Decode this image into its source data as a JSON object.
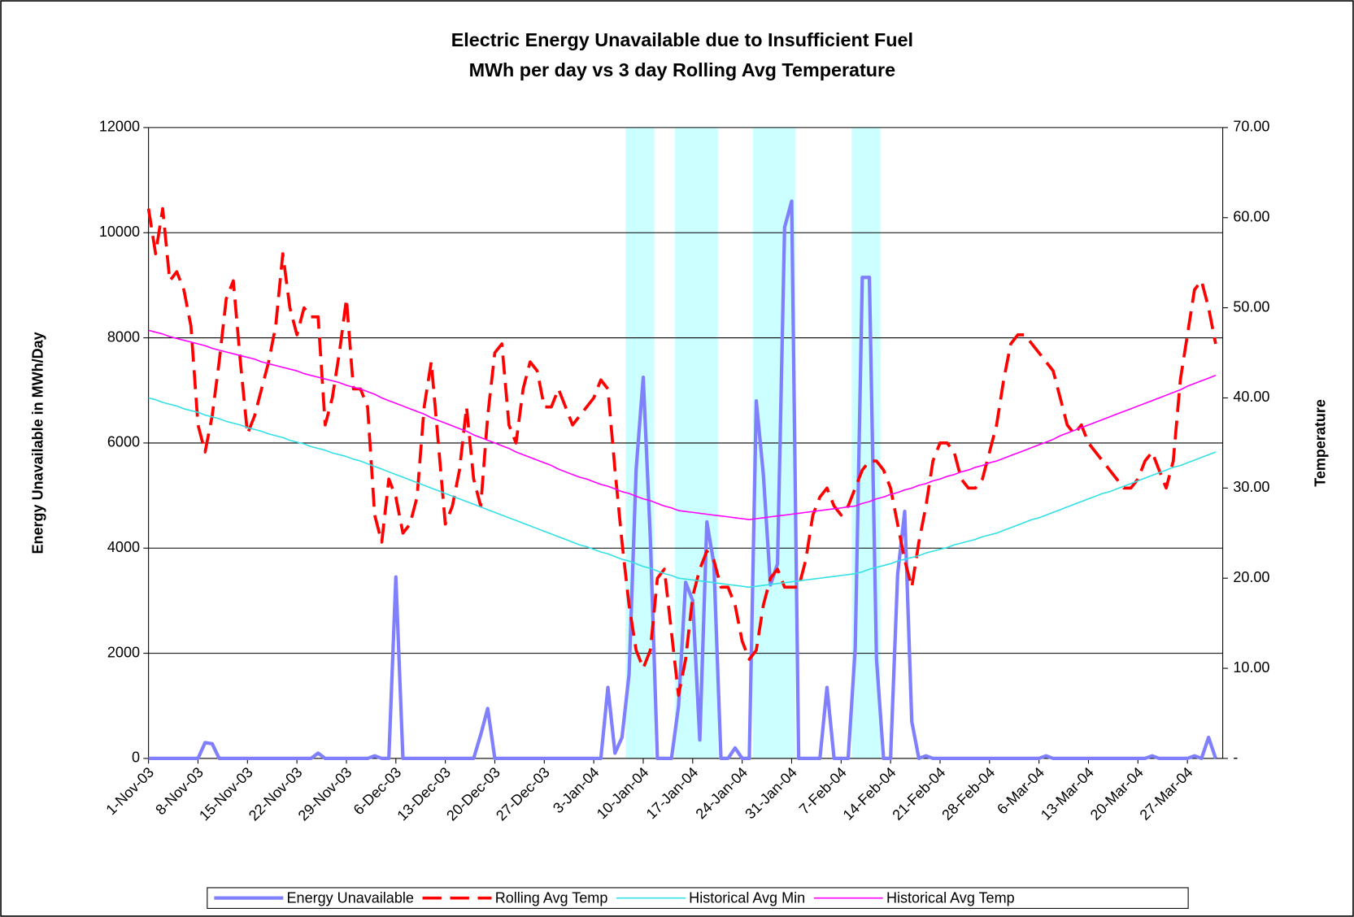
{
  "chart_data": {
    "type": "line",
    "title": "Electric Energy Unavailable due to Insufficient Fuel",
    "subtitle": "MWh per day vs 3 day Rolling Avg Temperature",
    "ylabel": "Energy Unavailable in MWh/Day",
    "y2label": "Temperature",
    "categories": [
      "1-Nov-03",
      null,
      null,
      null,
      null,
      null,
      null,
      "8-Nov-03",
      null,
      null,
      null,
      null,
      null,
      null,
      "15-Nov-03",
      null,
      null,
      null,
      null,
      null,
      null,
      "22-Nov-03",
      null,
      null,
      null,
      null,
      null,
      null,
      "29-Nov-03",
      null,
      null,
      null,
      null,
      null,
      null,
      "6-Dec-03",
      null,
      null,
      null,
      null,
      null,
      null,
      "13-Dec-03",
      null,
      null,
      null,
      null,
      null,
      null,
      "20-Dec-03",
      null,
      null,
      null,
      null,
      null,
      null,
      "27-Dec-03",
      null,
      null,
      null,
      null,
      null,
      null,
      "3-Jan-04",
      null,
      null,
      null,
      null,
      null,
      null,
      "10-Jan-04",
      null,
      null,
      null,
      null,
      null,
      null,
      "17-Jan-04",
      null,
      null,
      null,
      null,
      null,
      null,
      "24-Jan-04",
      null,
      null,
      null,
      null,
      null,
      null,
      "31-Jan-04",
      null,
      null,
      null,
      null,
      null,
      null,
      "7-Feb-04",
      null,
      null,
      null,
      null,
      null,
      null,
      "14-Feb-04",
      null,
      null,
      null,
      null,
      null,
      null,
      "21-Feb-04",
      null,
      null,
      null,
      null,
      null,
      null,
      "28-Feb-04",
      null,
      null,
      null,
      null,
      null,
      null,
      "6-Mar-04",
      null,
      null,
      null,
      null,
      null,
      null,
      "13-Mar-04",
      null,
      null,
      null,
      null,
      null,
      null,
      "20-Mar-04",
      null,
      null,
      null,
      null,
      null,
      null,
      "27-Mar-04",
      null,
      null,
      null,
      null
    ],
    "ylim": [
      0,
      12000
    ],
    "yticks": [
      0,
      2000,
      4000,
      6000,
      8000,
      10000,
      12000
    ],
    "y2lim": [
      0,
      70
    ],
    "y2ticks": [
      {
        "value": 0,
        "label": "-"
      },
      {
        "value": 10,
        "label": "10.00"
      },
      {
        "value": 20,
        "label": "20.00"
      },
      {
        "value": 30,
        "label": "30.00"
      },
      {
        "value": 40,
        "label": "40.00"
      },
      {
        "value": 50,
        "label": "50.00"
      },
      {
        "value": 60,
        "label": "60.00"
      },
      {
        "value": 70,
        "label": "70.00"
      }
    ],
    "grid": true,
    "legend": "bottom",
    "bands": {
      "color": "#ccffff",
      "values": [
        null,
        null,
        null,
        null,
        null,
        null,
        null,
        null,
        null,
        null,
        null,
        null,
        null,
        null,
        null,
        null,
        null,
        null,
        null,
        null,
        null,
        null,
        null,
        null,
        null,
        null,
        null,
        null,
        null,
        null,
        null,
        null,
        null,
        null,
        null,
        null,
        null,
        null,
        null,
        null,
        null,
        null,
        null,
        null,
        null,
        null,
        null,
        null,
        null,
        null,
        null,
        null,
        null,
        null,
        null,
        null,
        null,
        null,
        null,
        null,
        null,
        null,
        null,
        null,
        null,
        null,
        null,
        null,
        12000,
        12000,
        12000,
        12000,
        null,
        null,
        null,
        12000,
        12000,
        12000,
        12000,
        12000,
        12000,
        null,
        null,
        null,
        null,
        null,
        12000,
        12000,
        12000,
        12000,
        12000,
        12000,
        null,
        null,
        null,
        null,
        null,
        null,
        null,
        null,
        12000,
        12000,
        12000,
        12000,
        null,
        null,
        null,
        null,
        null,
        null,
        null,
        null,
        null,
        null,
        null,
        null,
        null,
        null,
        null,
        null,
        null,
        null,
        null,
        null,
        null,
        null,
        null,
        null,
        null,
        null,
        null,
        null,
        null,
        null,
        null,
        null,
        null,
        null,
        null,
        null,
        null,
        null,
        null,
        null,
        null,
        null,
        null,
        null,
        null,
        null
      ]
    },
    "series": [
      {
        "name": "Energy Unavailable",
        "color": "#8080ff",
        "axis": "y",
        "dash": false,
        "width": 4,
        "values": [
          0,
          0,
          0,
          0,
          0,
          0,
          0,
          0,
          300,
          280,
          0,
          0,
          0,
          0,
          0,
          0,
          0,
          0,
          0,
          0,
          0,
          0,
          0,
          0,
          100,
          0,
          0,
          0,
          0,
          0,
          0,
          0,
          50,
          0,
          0,
          3450,
          0,
          0,
          0,
          0,
          0,
          0,
          0,
          0,
          0,
          0,
          0,
          450,
          950,
          0,
          0,
          0,
          0,
          0,
          0,
          0,
          0,
          0,
          0,
          0,
          0,
          0,
          0,
          0,
          0,
          1350,
          100,
          400,
          1600,
          5500,
          7250,
          4200,
          0,
          0,
          0,
          1000,
          3350,
          3000,
          350,
          4500,
          3700,
          0,
          0,
          200,
          0,
          0,
          6800,
          5400,
          3300,
          3700,
          10100,
          10600,
          0,
          0,
          0,
          0,
          1350,
          0,
          0,
          0,
          2100,
          9150,
          9150,
          1900,
          0,
          0,
          3500,
          4700,
          700,
          0,
          50,
          0,
          0,
          0,
          0,
          0,
          0,
          0,
          0,
          0,
          0,
          0,
          0,
          0,
          0,
          0,
          0,
          50,
          0,
          0,
          0,
          0,
          0,
          0,
          0,
          0,
          0,
          0,
          0,
          0,
          0,
          0,
          50,
          0,
          0,
          0,
          0,
          0,
          50,
          0,
          400,
          0
        ]
      },
      {
        "name": "Rolling Avg Temp",
        "color": "#ff0000",
        "axis": "y2",
        "dash": true,
        "width": 3.5,
        "values": [
          61,
          56,
          61,
          53,
          54,
          52,
          48,
          37,
          34,
          38,
          44,
          51,
          53,
          44,
          36,
          38,
          41,
          44,
          48,
          56,
          50,
          47,
          50,
          49,
          49,
          37,
          40,
          45,
          51,
          41,
          41,
          39,
          27,
          24,
          31,
          29,
          25,
          26,
          29,
          39,
          44,
          35,
          26,
          28,
          32,
          39,
          31,
          28,
          38,
          45,
          46,
          37,
          35,
          41,
          44,
          43,
          39,
          39,
          41,
          39,
          37,
          38,
          39,
          40,
          42,
          41,
          32,
          24,
          17,
          12,
          10,
          12,
          20,
          21,
          14,
          7,
          11,
          18,
          21,
          23,
          22,
          19,
          19,
          17,
          13,
          11,
          12,
          17,
          20,
          21,
          19,
          19,
          19,
          22,
          27,
          29,
          30,
          28,
          27,
          28,
          30,
          32,
          33,
          33,
          32,
          30,
          26,
          22,
          19,
          24,
          28,
          33,
          35,
          35,
          34,
          31,
          30,
          30,
          31,
          34,
          37,
          42,
          46,
          47,
          47,
          46,
          45,
          44,
          43,
          40,
          37,
          36,
          37,
          35,
          34,
          33,
          32,
          31,
          30,
          30,
          31,
          33,
          34,
          32,
          30,
          33,
          42,
          47,
          52,
          53,
          50,
          46
        ]
      },
      {
        "name": "Historical Avg Min",
        "color": "#33e0e6",
        "axis": "y2",
        "dash": false,
        "width": 1.5,
        "values": [
          40.0,
          39.8,
          39.5,
          39.3,
          39.1,
          38.8,
          38.6,
          38.4,
          38.1,
          37.9,
          37.7,
          37.4,
          37.2,
          37.0,
          36.7,
          36.5,
          36.3,
          36.0,
          35.8,
          35.6,
          35.3,
          35.1,
          34.9,
          34.6,
          34.4,
          34.2,
          33.9,
          33.7,
          33.5,
          33.2,
          33.0,
          32.7,
          32.4,
          32.1,
          31.8,
          31.5,
          31.2,
          30.9,
          30.6,
          30.3,
          30.0,
          29.7,
          29.4,
          29.1,
          28.8,
          28.5,
          28.2,
          27.9,
          27.6,
          27.3,
          27.0,
          26.7,
          26.4,
          26.1,
          25.8,
          25.5,
          25.2,
          24.9,
          24.6,
          24.3,
          24.0,
          23.7,
          23.5,
          23.2,
          22.9,
          22.7,
          22.4,
          22.1,
          21.9,
          21.6,
          21.3,
          21.1,
          20.8,
          20.5,
          20.3,
          20.0,
          19.9,
          19.8,
          19.7,
          19.6,
          19.5,
          19.4,
          19.3,
          19.2,
          19.1,
          19.0,
          19.1,
          19.2,
          19.3,
          19.4,
          19.5,
          19.6,
          19.7,
          19.8,
          19.9,
          20.0,
          20.1,
          20.2,
          20.3,
          20.4,
          20.5,
          20.7,
          21.0,
          21.2,
          21.4,
          21.6,
          21.9,
          22.1,
          22.3,
          22.5,
          22.8,
          23.0,
          23.2,
          23.4,
          23.7,
          23.9,
          24.1,
          24.3,
          24.6,
          24.8,
          25.0,
          25.3,
          25.6,
          25.9,
          26.2,
          26.5,
          26.7,
          27.0,
          27.3,
          27.6,
          27.9,
          28.2,
          28.5,
          28.8,
          29.1,
          29.4,
          29.6,
          29.9,
          30.2,
          30.5,
          30.8,
          31.1,
          31.4,
          31.7,
          32.0,
          32.3,
          32.5,
          32.8,
          33.1,
          33.4,
          33.7,
          34.0
        ]
      },
      {
        "name": "Historical Avg Temp",
        "color": "#ff00ff",
        "axis": "y2",
        "dash": false,
        "width": 1.5,
        "values": [
          47.5,
          47.3,
          47.1,
          46.8,
          46.6,
          46.4,
          46.2,
          46.0,
          45.8,
          45.5,
          45.3,
          45.1,
          44.9,
          44.7,
          44.5,
          44.3,
          44.0,
          43.8,
          43.6,
          43.4,
          43.2,
          43.0,
          42.7,
          42.5,
          42.3,
          42.1,
          41.9,
          41.7,
          41.4,
          41.2,
          41.0,
          40.7,
          40.4,
          40.0,
          39.7,
          39.4,
          39.1,
          38.8,
          38.5,
          38.2,
          37.8,
          37.5,
          37.2,
          36.9,
          36.6,
          36.3,
          35.9,
          35.6,
          35.3,
          35.0,
          34.7,
          34.4,
          34.0,
          33.7,
          33.4,
          33.1,
          32.8,
          32.5,
          32.1,
          31.8,
          31.5,
          31.2,
          31.0,
          30.7,
          30.4,
          30.2,
          29.9,
          29.6,
          29.4,
          29.1,
          28.8,
          28.6,
          28.3,
          28.0,
          27.8,
          27.5,
          27.4,
          27.3,
          27.2,
          27.1,
          27.0,
          26.9,
          26.8,
          26.7,
          26.6,
          26.5,
          26.6,
          26.7,
          26.8,
          26.9,
          27.0,
          27.1,
          27.2,
          27.3,
          27.4,
          27.5,
          27.6,
          27.7,
          27.8,
          27.9,
          28.0,
          28.3,
          28.5,
          28.8,
          29.0,
          29.3,
          29.5,
          29.8,
          30.0,
          30.3,
          30.5,
          30.8,
          31.0,
          31.3,
          31.5,
          31.8,
          32.0,
          32.3,
          32.5,
          32.8,
          33.0,
          33.3,
          33.6,
          33.9,
          34.2,
          34.5,
          34.8,
          35.1,
          35.4,
          35.8,
          36.1,
          36.4,
          36.7,
          37.0,
          37.3,
          37.6,
          37.9,
          38.2,
          38.5,
          38.8,
          39.1,
          39.4,
          39.7,
          40.0,
          40.3,
          40.6,
          40.9,
          41.3,
          41.6,
          41.9,
          42.2,
          42.5
        ]
      }
    ]
  }
}
